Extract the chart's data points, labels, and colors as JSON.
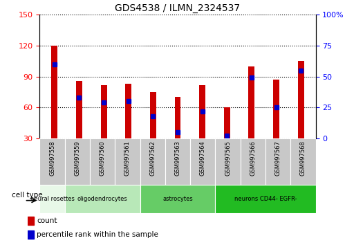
{
  "title": "GDS4538 / ILMN_2324537",
  "samples": [
    "GSM997558",
    "GSM997559",
    "GSM997560",
    "GSM997561",
    "GSM997562",
    "GSM997563",
    "GSM997564",
    "GSM997565",
    "GSM997566",
    "GSM997567",
    "GSM997568"
  ],
  "counts": [
    120,
    86,
    82,
    83,
    75,
    70,
    82,
    60,
    100,
    87,
    105
  ],
  "percentiles": [
    60,
    33,
    29,
    30,
    18,
    5,
    22,
    2,
    49,
    25,
    55
  ],
  "cell_types": [
    {
      "label": "neural rosettes",
      "start": 0,
      "end": 0,
      "color": "#e8f8e8"
    },
    {
      "label": "oligodendrocytes",
      "start": 1,
      "end": 3,
      "color": "#b8e8b8"
    },
    {
      "label": "astrocytes",
      "start": 4,
      "end": 6,
      "color": "#66cc66"
    },
    {
      "label": "neurons CD44- EGFR-",
      "start": 7,
      "end": 10,
      "color": "#22bb22"
    }
  ],
  "ylim_left": [
    30,
    150
  ],
  "ylim_right": [
    0,
    100
  ],
  "bar_color": "#cc0000",
  "dot_color": "#0000cc",
  "bg_color": "#ffffff",
  "cell_type_label": "cell type",
  "legend_count": "count",
  "legend_percentile": "percentile rank within the sample",
  "bar_width": 0.25
}
